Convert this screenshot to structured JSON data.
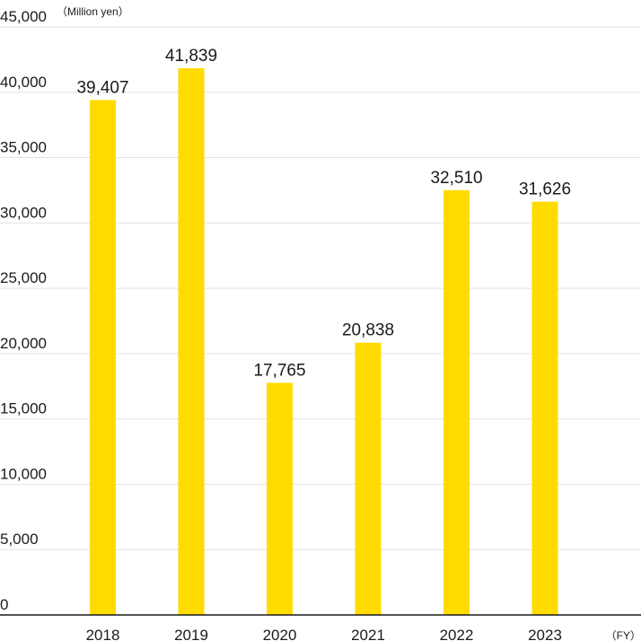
{
  "chart_data": {
    "type": "bar",
    "categories": [
      "2018",
      "2019",
      "2020",
      "2021",
      "2022",
      "2023"
    ],
    "values": [
      39407,
      41839,
      17765,
      20838,
      32510,
      31626
    ],
    "value_labels": [
      "39,407",
      "41,839",
      "17,765",
      "20,838",
      "32,510",
      "31,626"
    ],
    "yticks": [
      "0",
      "5,000",
      "10,000",
      "15,000",
      "20,000",
      "25,000",
      "30,000",
      "35,000",
      "40,000",
      "45,000"
    ],
    "y_unit": "（Million yen）",
    "x_unit": "（FY）",
    "ylim": [
      0,
      45000
    ],
    "grid": true,
    "bar_color": "#FFDB00"
  }
}
